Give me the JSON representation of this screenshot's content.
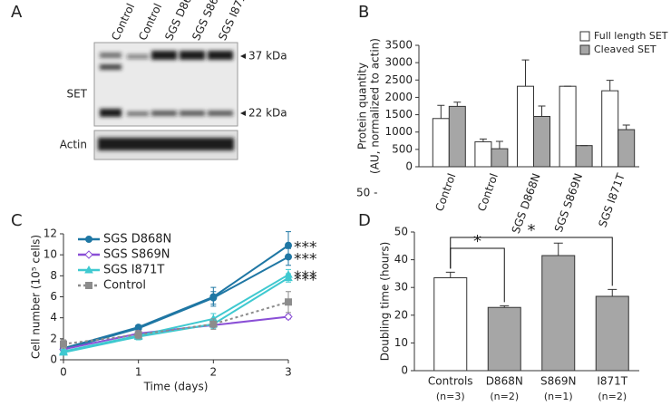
{
  "blot": {
    "panel": "A",
    "lanes": [
      "Control",
      "Control",
      "SGS D868N",
      "SGS S869N",
      "SGS I871T"
    ],
    "rows": [
      "SET",
      "Actin"
    ],
    "markers": [
      "37 kDa",
      "22 kDa",
      "50 -"
    ]
  },
  "chart_data": [
    {
      "type": "bar",
      "panel": "B",
      "categories": [
        "Control",
        "Control",
        "SGS D868N",
        "SGS S869N",
        "SGS I871T"
      ],
      "ylabel": [
        "Protein quantity",
        "(AU, normalized to actin)"
      ],
      "ylim": [
        0,
        3500
      ],
      "yticks": [
        0,
        500,
        1000,
        1500,
        2000,
        2500,
        3000,
        3500
      ],
      "legend": "top-right",
      "series": [
        {
          "name": "Full length SET",
          "color": "#ffffff",
          "values": [
            1390,
            720,
            2320,
            2320,
            2190
          ],
          "errors": [
            380,
            80,
            760,
            0,
            300
          ]
        },
        {
          "name": "Cleaved SET",
          "color": "#a6a6a6",
          "values": [
            1740,
            520,
            1450,
            610,
            1070
          ],
          "errors": [
            120,
            210,
            300,
            0,
            130
          ]
        }
      ]
    },
    {
      "type": "line",
      "panel": "C",
      "x": [
        0,
        1,
        2,
        3
      ],
      "xlim": [
        0,
        3
      ],
      "xticks": [
        0,
        1,
        2,
        3
      ],
      "xlabel": "Time (days)",
      "ylabel": "Cell number (10⁵ cells)",
      "ylim": [
        0,
        12
      ],
      "yticks": [
        0,
        2,
        4,
        6,
        8,
        10,
        12
      ],
      "legend": "top-left",
      "series": [
        {
          "name": "SGS D868N",
          "color": "#1f77a4",
          "marker": "circle",
          "dash": false,
          "lines": [
            [
              1.1,
              3.1,
              6.0,
              10.9
            ],
            [
              1.0,
              3.0,
              5.9,
              9.8
            ]
          ],
          "errors": [
            [
              0.2,
              0.2,
              0.9,
              1.3
            ],
            [
              0.2,
              0.2,
              0.6,
              0.8
            ]
          ]
        },
        {
          "name": "SGS S869N",
          "color": "#8a4fd6",
          "marker": "diamond",
          "dash": false,
          "lines": [
            [
              1.0,
              2.5,
              3.3,
              4.1
            ]
          ],
          "errors": [
            [
              0.2,
              0.2,
              0.2,
              0.2
            ]
          ]
        },
        {
          "name": "SGS I871T",
          "color": "#3fc9d0",
          "marker": "triangle",
          "dash": false,
          "lines": [
            [
              0.8,
              2.3,
              3.9,
              8.1
            ],
            [
              0.7,
              2.2,
              3.4,
              7.8
            ]
          ],
          "errors": [
            [
              0.2,
              0.3,
              0.5,
              0.5
            ],
            [
              0.2,
              0.3,
              0.4,
              0.4
            ]
          ]
        },
        {
          "name": "Control",
          "color": "#8c8c8c",
          "marker": "square",
          "dash": true,
          "lines": [
            [
              1.5,
              2.4,
              3.4,
              5.5
            ]
          ],
          "errors": [
            [
              0.4,
              0.4,
              0.5,
              1.0
            ]
          ]
        }
      ],
      "annotations": [
        "***",
        "***",
        "***",
        "***"
      ]
    },
    {
      "type": "bar",
      "panel": "D",
      "categories": [
        "Controls",
        "D868N",
        "S869N",
        "I871T"
      ],
      "n_labels": [
        "(n=3)",
        "(n=2)",
        "(n=1)",
        "(n=2)"
      ],
      "ylabel": "Doubling time (hours)",
      "ylim": [
        0,
        50
      ],
      "yticks": [
        0,
        10,
        20,
        30,
        40,
        50
      ],
      "colors": [
        "#ffffff",
        "#a6a6a6",
        "#a6a6a6",
        "#a6a6a6"
      ],
      "values": [
        33.5,
        22.8,
        41.5,
        26.8
      ],
      "errors": [
        2.0,
        0.6,
        4.5,
        2.5
      ],
      "significance": [
        {
          "text": "*",
          "between": [
            0,
            1
          ]
        },
        {
          "text": "*",
          "between": [
            0,
            3
          ]
        }
      ]
    }
  ]
}
